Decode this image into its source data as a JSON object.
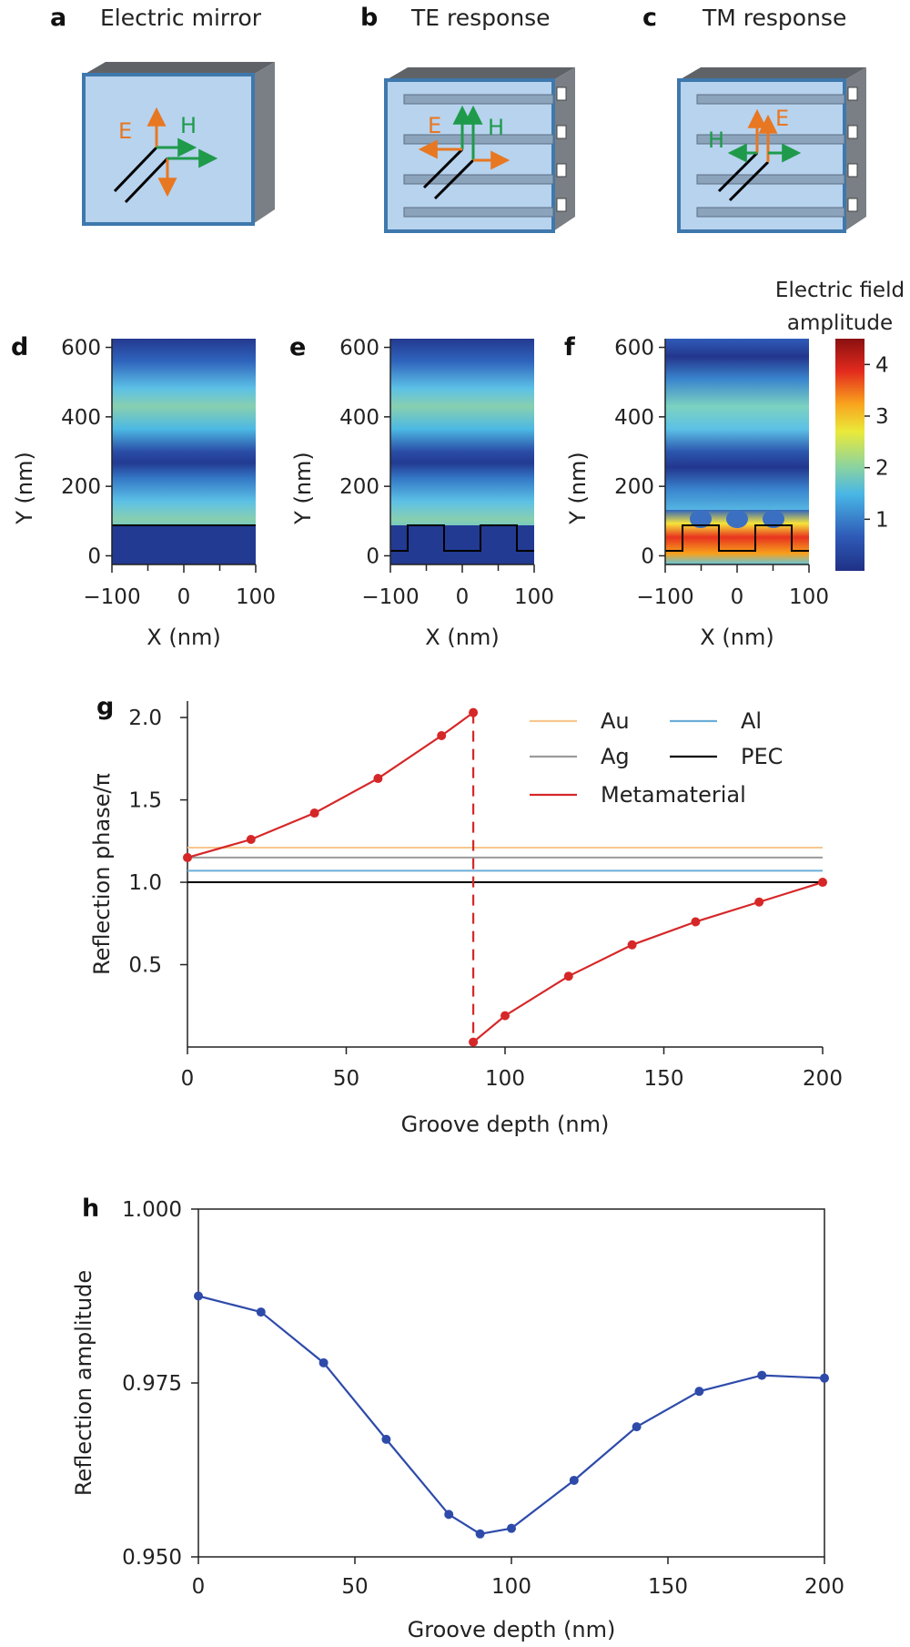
{
  "colors": {
    "orange": "#E87722",
    "green": "#1F9A4B",
    "red": "#D62728",
    "blue": "#2E4BAA",
    "au": "#F6C78E",
    "ag": "#9A9A9A",
    "al": "#6BAED6",
    "pec": "#000000",
    "slab_face": "#B7D3EE",
    "slab_edge": "#3E78AD",
    "slab_side": "#7A7F85",
    "groove": "#8CA3BC"
  },
  "panels_top": [
    {
      "label": "a",
      "title": "Electric mirror",
      "e": "E",
      "h": "H"
    },
    {
      "label": "b",
      "title": "TE response",
      "e": "E",
      "h": "H"
    },
    {
      "label": "c",
      "title": "TM response",
      "e": "E",
      "h": "H"
    }
  ],
  "field_maps": {
    "panels": [
      {
        "label": "d",
        "type": "flat mirror"
      },
      {
        "label": "e",
        "type": "grooves, TE"
      },
      {
        "label": "f",
        "type": "grooves, TM"
      }
    ],
    "x_label": "X (nm)",
    "y_label": "Y (nm)",
    "x_ticks": [
      "−100",
      "0",
      "100"
    ],
    "y_ticks": [
      "0",
      "200",
      "400",
      "600"
    ],
    "x_range": [
      -100,
      100
    ],
    "y_range": [
      -25,
      625
    ],
    "groove_top": 105,
    "groove_bottom": 30,
    "colorbar": {
      "title_line1": "Electric field",
      "title_line2": "amplitude",
      "ticks": [
        "1",
        "2",
        "3",
        "4"
      ],
      "range": [
        0,
        4.5
      ]
    }
  },
  "chart_data": [
    {
      "panel": "g",
      "type": "line",
      "xlabel": "Groove depth (nm)",
      "ylabel": "Reflection phase/π",
      "xlim": [
        0,
        200
      ],
      "ylim": [
        0,
        2.1
      ],
      "x_ticks": [
        "0",
        "50",
        "100",
        "150",
        "200"
      ],
      "y_ticks": [
        "0.5",
        "1.0",
        "1.5",
        "2.0"
      ],
      "series": [
        {
          "name": "Au",
          "x": [
            0,
            200
          ],
          "values": [
            1.21,
            1.21
          ]
        },
        {
          "name": "Ag",
          "x": [
            0,
            200
          ],
          "values": [
            1.15,
            1.15
          ]
        },
        {
          "name": "Al",
          "x": [
            0,
            200
          ],
          "values": [
            1.07,
            1.07
          ]
        },
        {
          "name": "PEC",
          "x": [
            0,
            200
          ],
          "values": [
            1.0,
            1.0
          ]
        },
        {
          "name": "Metamaterial",
          "x": [
            0,
            20,
            40,
            60,
            80,
            90,
            90,
            100,
            120,
            140,
            160,
            180,
            200
          ],
          "values": [
            1.15,
            1.26,
            1.42,
            1.63,
            1.89,
            2.03,
            0.03,
            0.19,
            0.43,
            0.62,
            0.76,
            0.88,
            1.0
          ]
        }
      ],
      "legend": [
        "Au",
        "Al",
        "Ag",
        "PEC",
        "Metamaterial"
      ],
      "legend_position": "top-right",
      "discontinuity_x": 90
    },
    {
      "panel": "h",
      "type": "line",
      "xlabel": "Groove depth (nm)",
      "ylabel": "Reflection amplitude",
      "xlim": [
        0,
        200
      ],
      "ylim": [
        0.95,
        1.0
      ],
      "x_ticks": [
        "0",
        "50",
        "100",
        "150",
        "200"
      ],
      "y_ticks": [
        "0.950",
        "0.975",
        "1.000"
      ],
      "series": [
        {
          "name": "Metamaterial",
          "x": [
            0,
            20,
            40,
            60,
            80,
            90,
            100,
            120,
            140,
            160,
            180,
            200
          ],
          "values": [
            0.9875,
            0.9852,
            0.9779,
            0.9669,
            0.9561,
            0.9533,
            0.9541,
            0.961,
            0.9687,
            0.9738,
            0.9761,
            0.9757
          ]
        }
      ]
    }
  ]
}
